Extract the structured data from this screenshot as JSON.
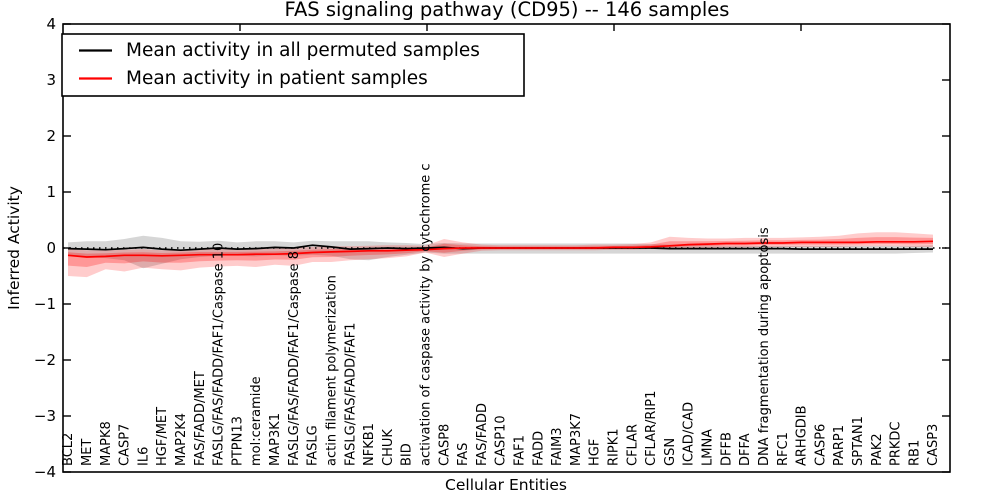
{
  "chart_data": {
    "type": "line",
    "title": "FAS signaling pathway (CD95) -- 146 samples",
    "xlabel": "Cellular Entities",
    "ylabel": "Inferred Activity",
    "ylim": [
      -4,
      4
    ],
    "yticks": [
      4,
      3,
      2,
      1,
      0,
      -1,
      -2,
      -3,
      -4
    ],
    "ytick_labels": [
      "4",
      "3",
      "2",
      "1",
      "0",
      "−1",
      "−2",
      "−3",
      "−4"
    ],
    "grid": false,
    "legend_position": "upper left",
    "baseline": {
      "value": 0,
      "style": "dotted",
      "color": "#000000"
    },
    "categories": [
      "BCL2",
      "MET",
      "MAPK8",
      "CASP7",
      "IL6",
      "HGF/MET",
      "MAP2K4",
      "FAS/FADD/MET",
      "FASLG/FAS/FADD/FAF1/Caspase 10",
      "PTPN13",
      "mol:ceramide",
      "MAP3K1",
      "FASLG/FAS/FADD/FAF1/Caspase 8",
      "FASLG",
      "actin filament polymerization",
      "FASLG/FAS/FADD/FAF1",
      "NFKB1",
      "CHUK",
      "BID",
      "activation of caspase activity by cytochrome c",
      "CASP8",
      "FAS",
      "FAS/FADD",
      "CASP10",
      "FAF1",
      "FADD",
      "FAIM3",
      "MAP3K7",
      "HGF",
      "RIPK1",
      "CFLAR",
      "CFLAR/RIP1",
      "GSN",
      "ICAD/CAD",
      "LMNA",
      "DFFB",
      "DFFA",
      "DNA fragmentation during apoptosis",
      "RFC1",
      "ARHGDIB",
      "CASP6",
      "PARP1",
      "SPTAN1",
      "PAK2",
      "PRKDC",
      "RB1",
      "CASP3"
    ],
    "series": [
      {
        "name": "Mean activity in all permuted samples",
        "color": "#000000",
        "values": [
          -0.01,
          -0.02,
          -0.03,
          -0.01,
          0.01,
          -0.02,
          -0.04,
          -0.02,
          0.0,
          -0.02,
          -0.01,
          0.01,
          0.0,
          0.05,
          0.02,
          -0.02,
          -0.01,
          0.0,
          -0.01,
          0.0,
          0.01,
          -0.01,
          0.0,
          0.0,
          0.0,
          0.0,
          0.0,
          0.0,
          0.0,
          0.0,
          0.0,
          0.0,
          -0.01,
          -0.01,
          -0.01,
          -0.01,
          -0.01,
          -0.01,
          -0.01,
          -0.02,
          -0.02,
          -0.02,
          -0.02,
          -0.02,
          -0.02,
          -0.02,
          -0.02
        ],
        "band_upper": [
          0.1,
          0.12,
          0.12,
          0.16,
          0.22,
          0.18,
          0.12,
          0.11,
          0.13,
          0.1,
          0.12,
          0.12,
          0.1,
          0.13,
          0.12,
          0.12,
          0.12,
          0.1,
          0.09,
          0.07,
          0.09,
          0.08,
          0.08,
          0.08,
          0.08,
          0.08,
          0.08,
          0.08,
          0.08,
          0.08,
          0.08,
          0.07,
          0.06,
          0.05,
          0.05,
          0.04,
          0.04,
          0.04,
          0.04,
          0.04,
          0.04,
          0.04,
          0.04,
          0.04,
          0.04,
          0.04,
          0.05
        ],
        "band_lower": [
          -0.13,
          -0.16,
          -0.18,
          -0.22,
          -0.36,
          -0.28,
          -0.2,
          -0.16,
          -0.14,
          -0.14,
          -0.15,
          -0.13,
          -0.14,
          -0.12,
          -0.14,
          -0.2,
          -0.22,
          -0.16,
          -0.12,
          -0.08,
          -0.1,
          -0.1,
          -0.1,
          -0.1,
          -0.1,
          -0.1,
          -0.1,
          -0.1,
          -0.1,
          -0.1,
          -0.1,
          -0.1,
          -0.1,
          -0.1,
          -0.1,
          -0.1,
          -0.1,
          -0.1,
          -0.1,
          -0.1,
          -0.1,
          -0.1,
          -0.1,
          -0.1,
          -0.1,
          -0.09,
          -0.08
        ]
      },
      {
        "name": "Mean activity in patient samples",
        "color": "#ff0000",
        "values": [
          -0.13,
          -0.16,
          -0.15,
          -0.13,
          -0.13,
          -0.14,
          -0.13,
          -0.12,
          -0.12,
          -0.12,
          -0.11,
          -0.11,
          -0.1,
          -0.08,
          -0.07,
          -0.06,
          -0.05,
          -0.05,
          -0.04,
          -0.03,
          -0.01,
          0.0,
          0.0,
          0.0,
          0.0,
          0.0,
          0.0,
          0.0,
          0.0,
          0.01,
          0.01,
          0.02,
          0.04,
          0.06,
          0.07,
          0.08,
          0.08,
          0.09,
          0.09,
          0.1,
          0.1,
          0.1,
          0.1,
          0.11,
          0.11,
          0.11,
          0.12
        ],
        "band_upper": [
          -0.02,
          -0.04,
          -0.04,
          -0.03,
          -0.02,
          -0.04,
          -0.03,
          -0.02,
          -0.02,
          -0.02,
          -0.02,
          -0.01,
          0.0,
          0.02,
          0.03,
          0.03,
          0.04,
          0.05,
          0.05,
          0.04,
          0.16,
          0.1,
          0.06,
          0.05,
          0.05,
          0.05,
          0.05,
          0.05,
          0.06,
          0.06,
          0.07,
          0.1,
          0.2,
          0.18,
          0.17,
          0.17,
          0.18,
          0.18,
          0.18,
          0.19,
          0.2,
          0.22,
          0.26,
          0.28,
          0.28,
          0.26,
          0.24
        ],
        "band_lower": [
          -0.5,
          -0.52,
          -0.38,
          -0.42,
          -0.35,
          -0.38,
          -0.4,
          -0.35,
          -0.33,
          -0.32,
          -0.34,
          -0.3,
          -0.32,
          -0.25,
          -0.25,
          -0.22,
          -0.2,
          -0.18,
          -0.15,
          -0.08,
          -0.16,
          -0.1,
          -0.05,
          -0.04,
          -0.04,
          -0.04,
          -0.04,
          -0.04,
          -0.04,
          -0.03,
          -0.03,
          -0.02,
          -0.02,
          0.0,
          0.0,
          0.01,
          0.01,
          0.02,
          0.02,
          0.02,
          0.02,
          0.02,
          0.03,
          0.03,
          0.03,
          0.02,
          0.02
        ]
      }
    ]
  }
}
